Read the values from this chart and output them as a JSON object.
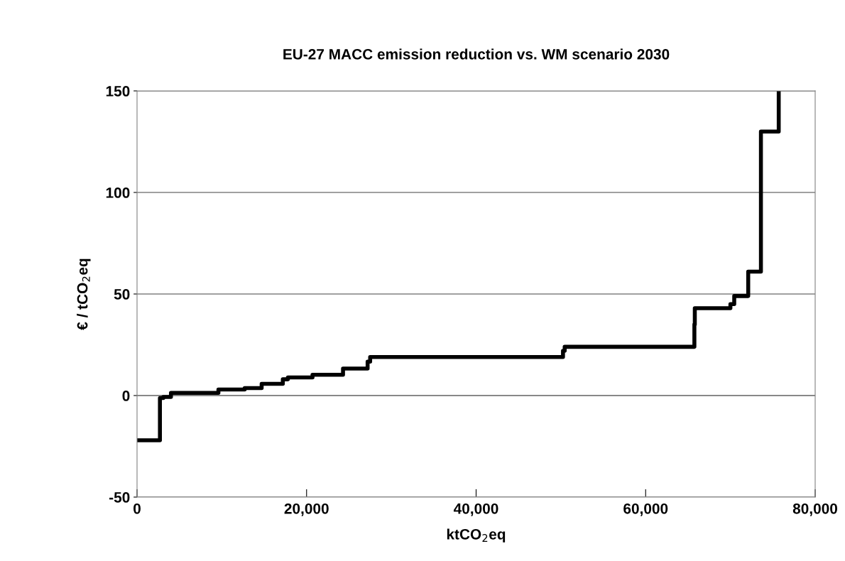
{
  "chart_data": {
    "type": "step",
    "title": "EU-27 MACC emission reduction vs. WM scenario 2030",
    "xlabel": "ktCO$_{2}$eq",
    "ylabel": "€ / tCO$_{2}$eq",
    "series": [
      {
        "color": "#000000",
        "x": [
          0,
          2700,
          3100,
          4000,
          9600,
          12700,
          14700,
          17200,
          17800,
          20700,
          24300,
          27200,
          27500,
          50250,
          50450,
          65750,
          65800,
          70000,
          70450,
          72100,
          73600,
          75700
        ],
        "values": [
          -22,
          -1.2,
          -0.7,
          1.3,
          3,
          3.7,
          5.8,
          8,
          8.9,
          10.2,
          13.3,
          16.7,
          19,
          22,
          24,
          35,
          43,
          45,
          49,
          61,
          130,
          150
        ]
      }
    ],
    "xlim": [
      0,
      80000
    ],
    "xticks": [
      {
        "value": 0,
        "label": "0"
      },
      {
        "value": 20000,
        "label": "20,000"
      },
      {
        "value": 40000,
        "label": "40,000"
      },
      {
        "value": 60000,
        "label": "60,000"
      },
      {
        "value": 80000,
        "label": "80,000"
      }
    ],
    "ylim": [
      -50,
      150
    ],
    "yticks": [
      -50,
      0,
      50,
      100,
      150
    ],
    "grid": "y",
    "legend": false,
    "line_style": "solid",
    "marker": "none"
  }
}
